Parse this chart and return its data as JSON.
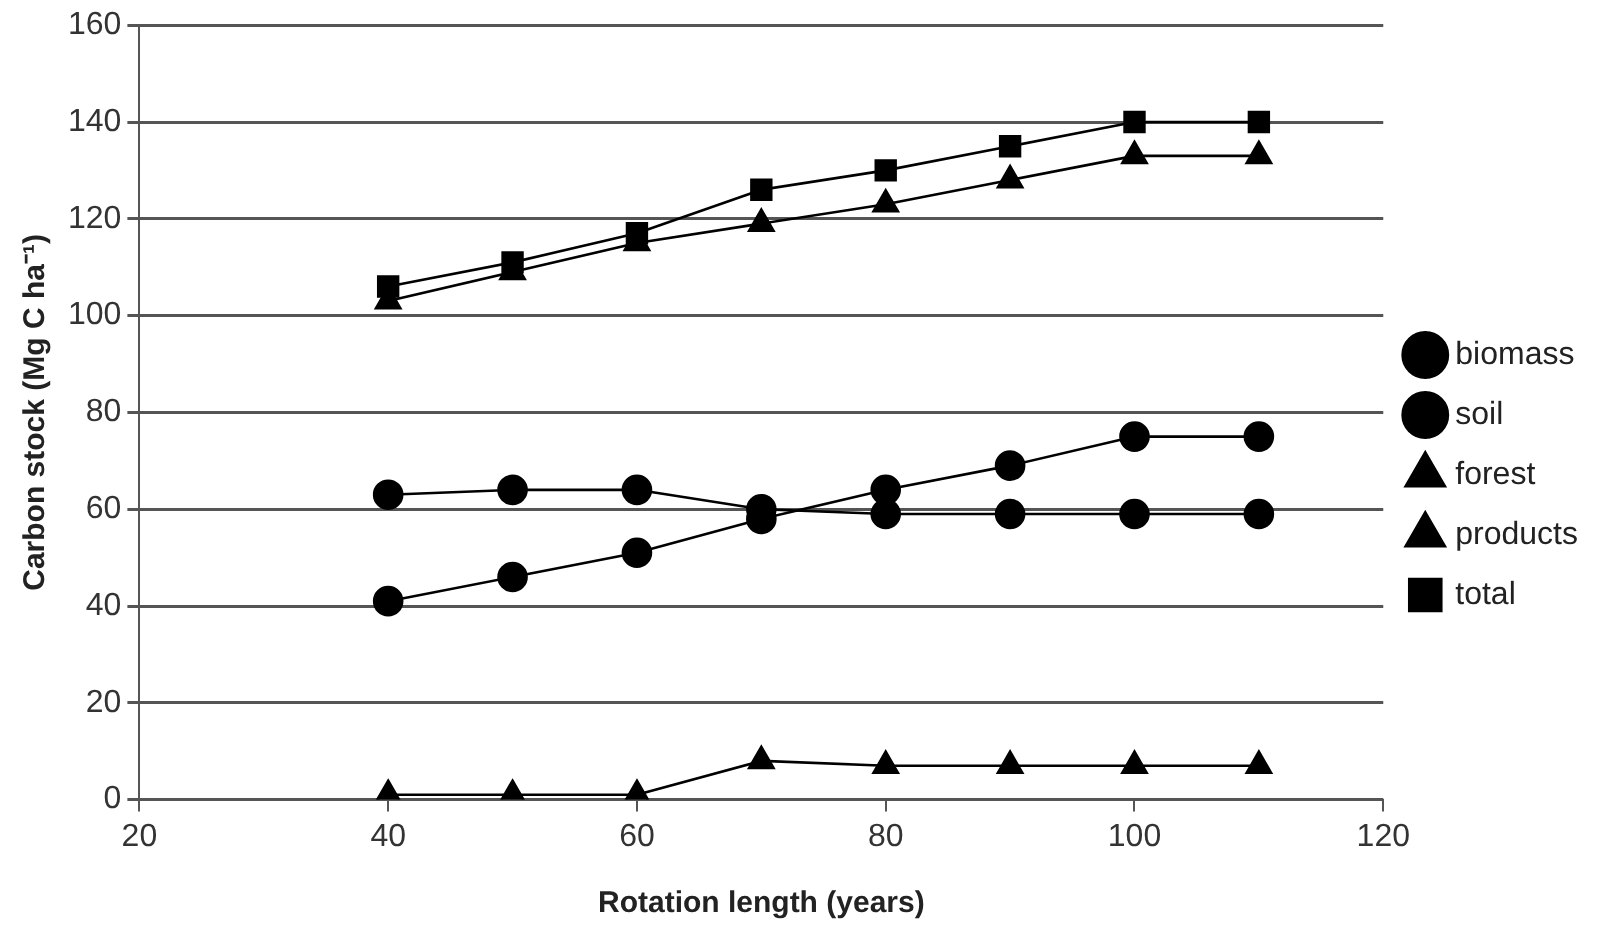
{
  "chart_data": {
    "type": "line",
    "xlabel": "Rotation length (years)",
    "ylabel": "Carbon stock (Mg C ha⁻¹)",
    "x": [
      40,
      50,
      60,
      70,
      80,
      90,
      100,
      110
    ],
    "xlim": [
      20,
      120
    ],
    "xticks": [
      20,
      40,
      60,
      80,
      100,
      120
    ],
    "ylim": [
      0,
      160
    ],
    "yticks": [
      0,
      20,
      40,
      60,
      80,
      100,
      120,
      140,
      160
    ],
    "grid": "y",
    "legend": "right",
    "line_style": "solid",
    "series": [
      {
        "name": "biomass",
        "color": "#000000",
        "marker": "circle",
        "values": [
          41,
          46,
          51,
          58,
          64,
          69,
          75,
          75
        ]
      },
      {
        "name": "soil",
        "color": "#000000",
        "marker": "circle",
        "values": [
          63,
          64,
          64,
          60,
          59,
          59,
          59,
          59
        ]
      },
      {
        "name": "forest",
        "color": "#000000",
        "marker": "triangle",
        "values": [
          103,
          109,
          115,
          119,
          123,
          128,
          133,
          133
        ]
      },
      {
        "name": "products",
        "color": "#000000",
        "marker": "triangle",
        "values": [
          1,
          1,
          1,
          8,
          7,
          7,
          7,
          7
        ]
      },
      {
        "name": "total",
        "color": "#000000",
        "marker": "square",
        "values": [
          106,
          111,
          117,
          126,
          130,
          135,
          140,
          140
        ]
      }
    ]
  }
}
